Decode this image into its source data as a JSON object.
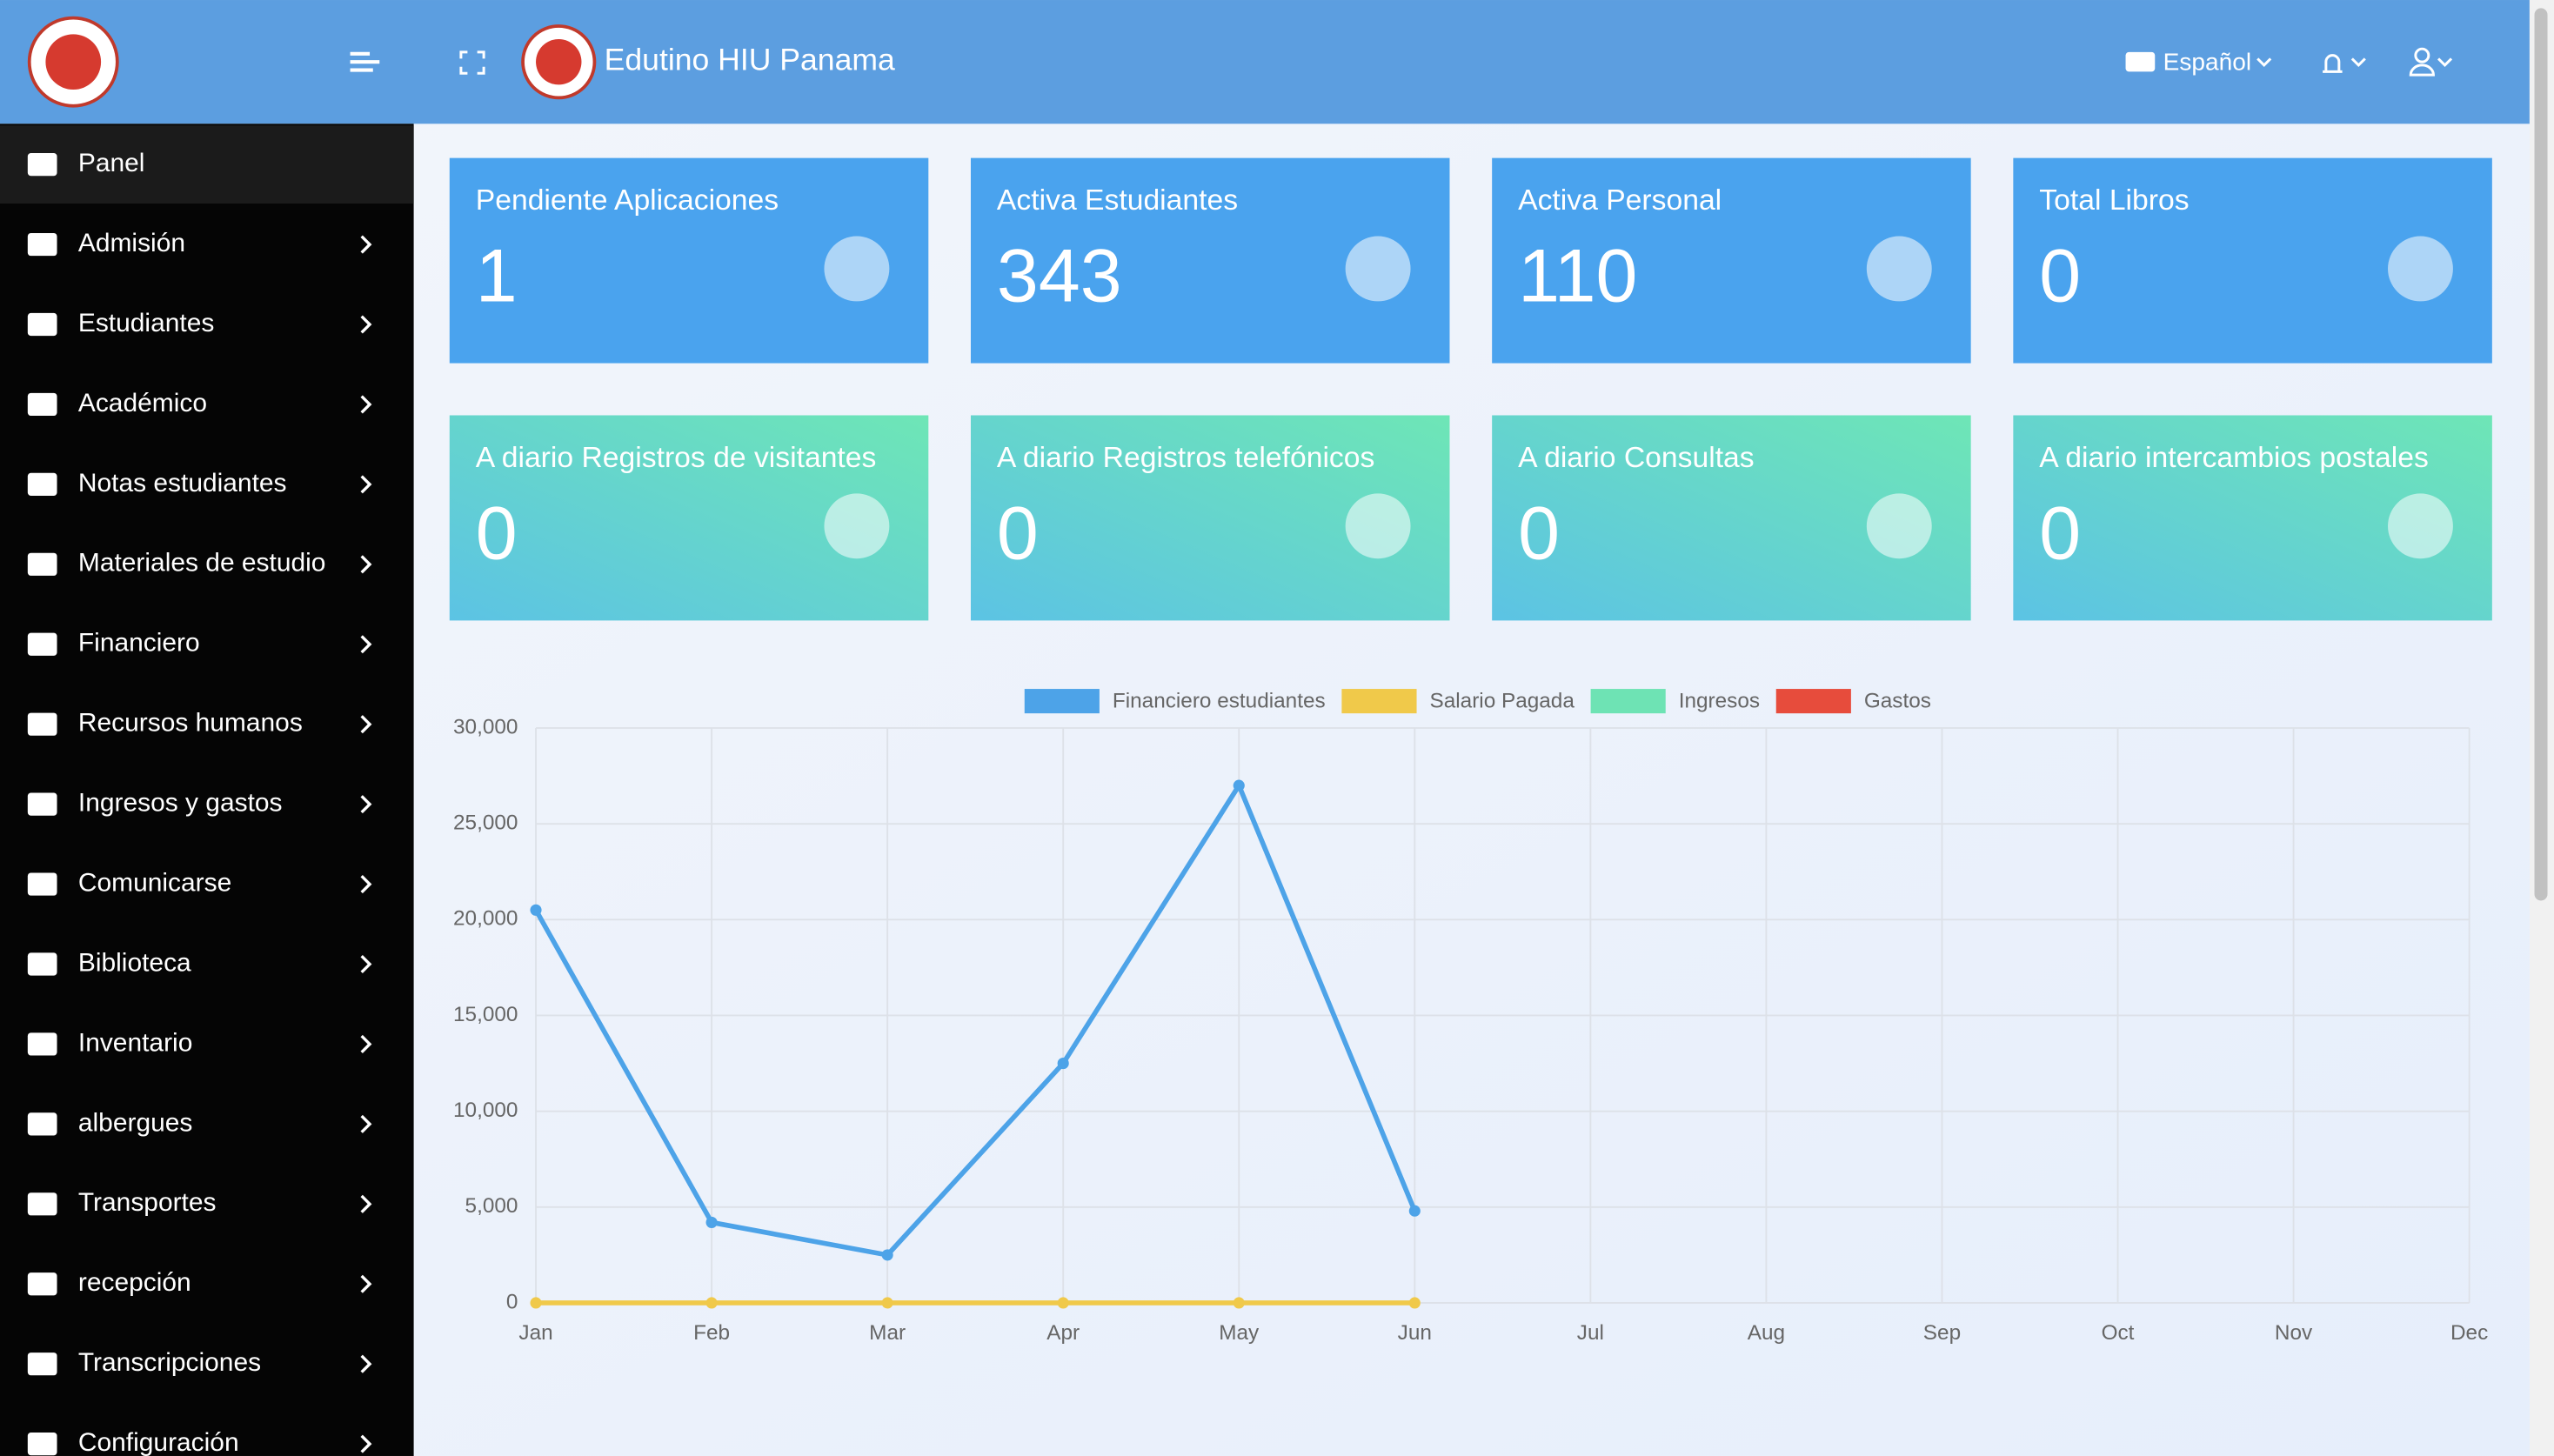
{
  "header": {
    "brand": "Edutino HIU Panama",
    "language": "Español"
  },
  "menu": [
    "Panel",
    "Admisión",
    "Estudiantes",
    "Académico",
    "Notas estudiantes",
    "Materiales de estudio",
    "Financiero",
    "Recursos humanos",
    "Ingresos y gastos",
    "Comunicarse",
    "Biblioteca",
    "Inventario",
    "albergues",
    "Transportes",
    "recepción",
    "Transcripciones",
    "Configuración"
  ],
  "cards": [
    {
      "title": "Pendiente Aplicaciones",
      "value": 1
    },
    {
      "title": "Activa Estudiantes",
      "value": 343
    },
    {
      "title": "Activa Personal",
      "value": 110
    },
    {
      "title": "Total Libros",
      "value": 0
    },
    {
      "title": "A diario Registros de visitantes",
      "value": 0
    },
    {
      "title": "A diario Registros telefónicos",
      "value": 0
    },
    {
      "title": "A diario Consultas",
      "value": 0
    },
    {
      "title": "A diario intercambios postales",
      "value": 0
    }
  ],
  "chart_data": {
    "type": "line",
    "categories": [
      "Jan",
      "Feb",
      "Mar",
      "Apr",
      "May",
      "Jun",
      "Jul",
      "Aug",
      "Sep",
      "Oct",
      "Nov",
      "Dec"
    ],
    "series": [
      {
        "name": "Financiero estudiantes",
        "color": "#4da3e8",
        "values": [
          20500,
          4200,
          2500,
          12500,
          27000,
          4800,
          null,
          null,
          null,
          null,
          null,
          null
        ]
      },
      {
        "name": "Salario Pagada",
        "color": "#f0c94a",
        "values": [
          0,
          0,
          0,
          0,
          0,
          0,
          null,
          null,
          null,
          null,
          null,
          null
        ]
      },
      {
        "name": "Ingresos",
        "color": "#6ee3b4",
        "values": [
          null,
          null,
          null,
          null,
          null,
          null,
          null,
          null,
          null,
          null,
          null,
          null
        ]
      },
      {
        "name": "Gastos",
        "color": "#e74c3c",
        "values": [
          null,
          null,
          null,
          null,
          null,
          null,
          null,
          null,
          null,
          null,
          null,
          null
        ]
      }
    ],
    "ylim": [
      0,
      30000
    ],
    "yticks": [
      0,
      {
        "value": 5000,
        "label": "5,000"
      },
      {
        "value": 10000,
        "label": "10,000"
      },
      {
        "value": 15000,
        "label": "15,000"
      },
      {
        "value": 20000,
        "label": "20,000"
      },
      {
        "value": 25000,
        "label": "25,000"
      },
      {
        "value": 30000,
        "label": "30,000"
      }
    ],
    "grid": true,
    "legend": "top"
  }
}
